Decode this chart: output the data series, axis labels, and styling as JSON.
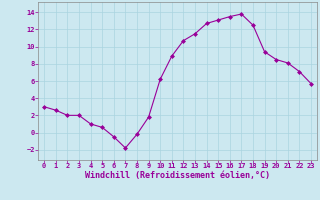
{
  "x": [
    0,
    1,
    2,
    3,
    4,
    5,
    6,
    7,
    8,
    9,
    10,
    11,
    12,
    13,
    14,
    15,
    16,
    17,
    18,
    19,
    20,
    21,
    22,
    23
  ],
  "y": [
    3.0,
    2.6,
    2.0,
    2.0,
    1.0,
    0.6,
    -0.5,
    -1.8,
    -0.2,
    1.8,
    6.2,
    8.9,
    10.7,
    11.5,
    12.7,
    13.1,
    13.5,
    13.8,
    12.5,
    9.4,
    8.5,
    8.1,
    7.1,
    5.7
  ],
  "line_color": "#990099",
  "marker": "D",
  "marker_size": 2.0,
  "bg_color": "#cce8f0",
  "grid_color": "#aad4e0",
  "xlabel": "Windchill (Refroidissement éolien,°C)",
  "xlim": [
    -0.5,
    23.5
  ],
  "ylim": [
    -3.2,
    15.2
  ],
  "yticks": [
    -2,
    0,
    2,
    4,
    6,
    8,
    10,
    12,
    14
  ],
  "xticks": [
    0,
    1,
    2,
    3,
    4,
    5,
    6,
    7,
    8,
    9,
    10,
    11,
    12,
    13,
    14,
    15,
    16,
    17,
    18,
    19,
    20,
    21,
    22,
    23
  ],
  "tick_color": "#990099",
  "tick_fontsize": 5.0,
  "xlabel_fontsize": 6.0,
  "label_color": "#990099",
  "spine_color": "#888888"
}
